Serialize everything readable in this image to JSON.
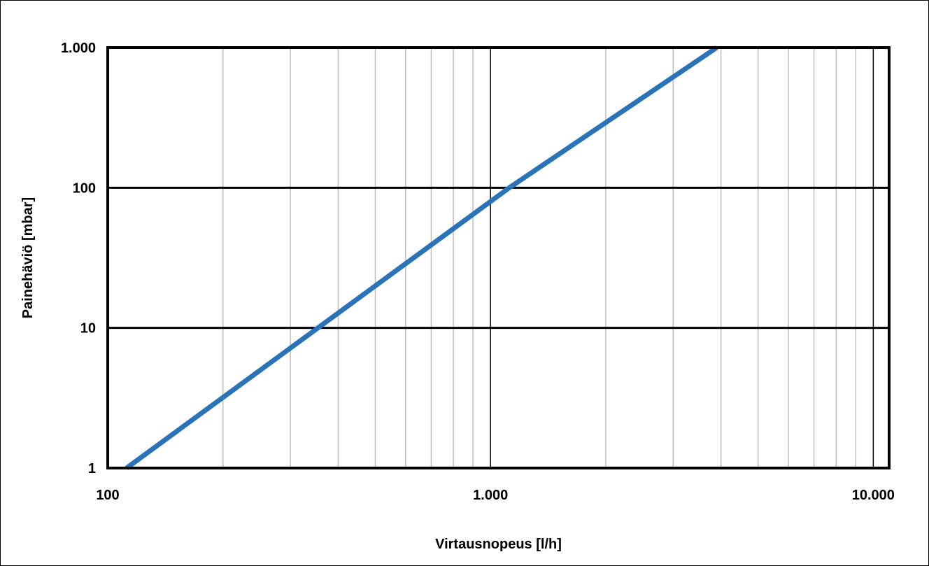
{
  "chart_data": {
    "type": "line",
    "title": "",
    "xlabel": "Virtausnopeus [l/h]",
    "ylabel": "Painehäviö [mbar]",
    "x_scale": "log",
    "y_scale": "log",
    "xlim": [
      100,
      11000
    ],
    "ylim": [
      1,
      1000
    ],
    "x_ticks": [
      100,
      1000,
      10000
    ],
    "x_tick_labels": [
      "100",
      "1.000",
      "10.000"
    ],
    "y_ticks": [
      1,
      10,
      100,
      1000
    ],
    "y_tick_labels": [
      "1",
      "10",
      "100",
      "1.000"
    ],
    "grid": true,
    "legend": "none",
    "series": [
      {
        "color": "#2b73b8",
        "x": [
          112,
          1120,
          3900
        ],
        "y": [
          1,
          100,
          1000
        ]
      }
    ]
  }
}
